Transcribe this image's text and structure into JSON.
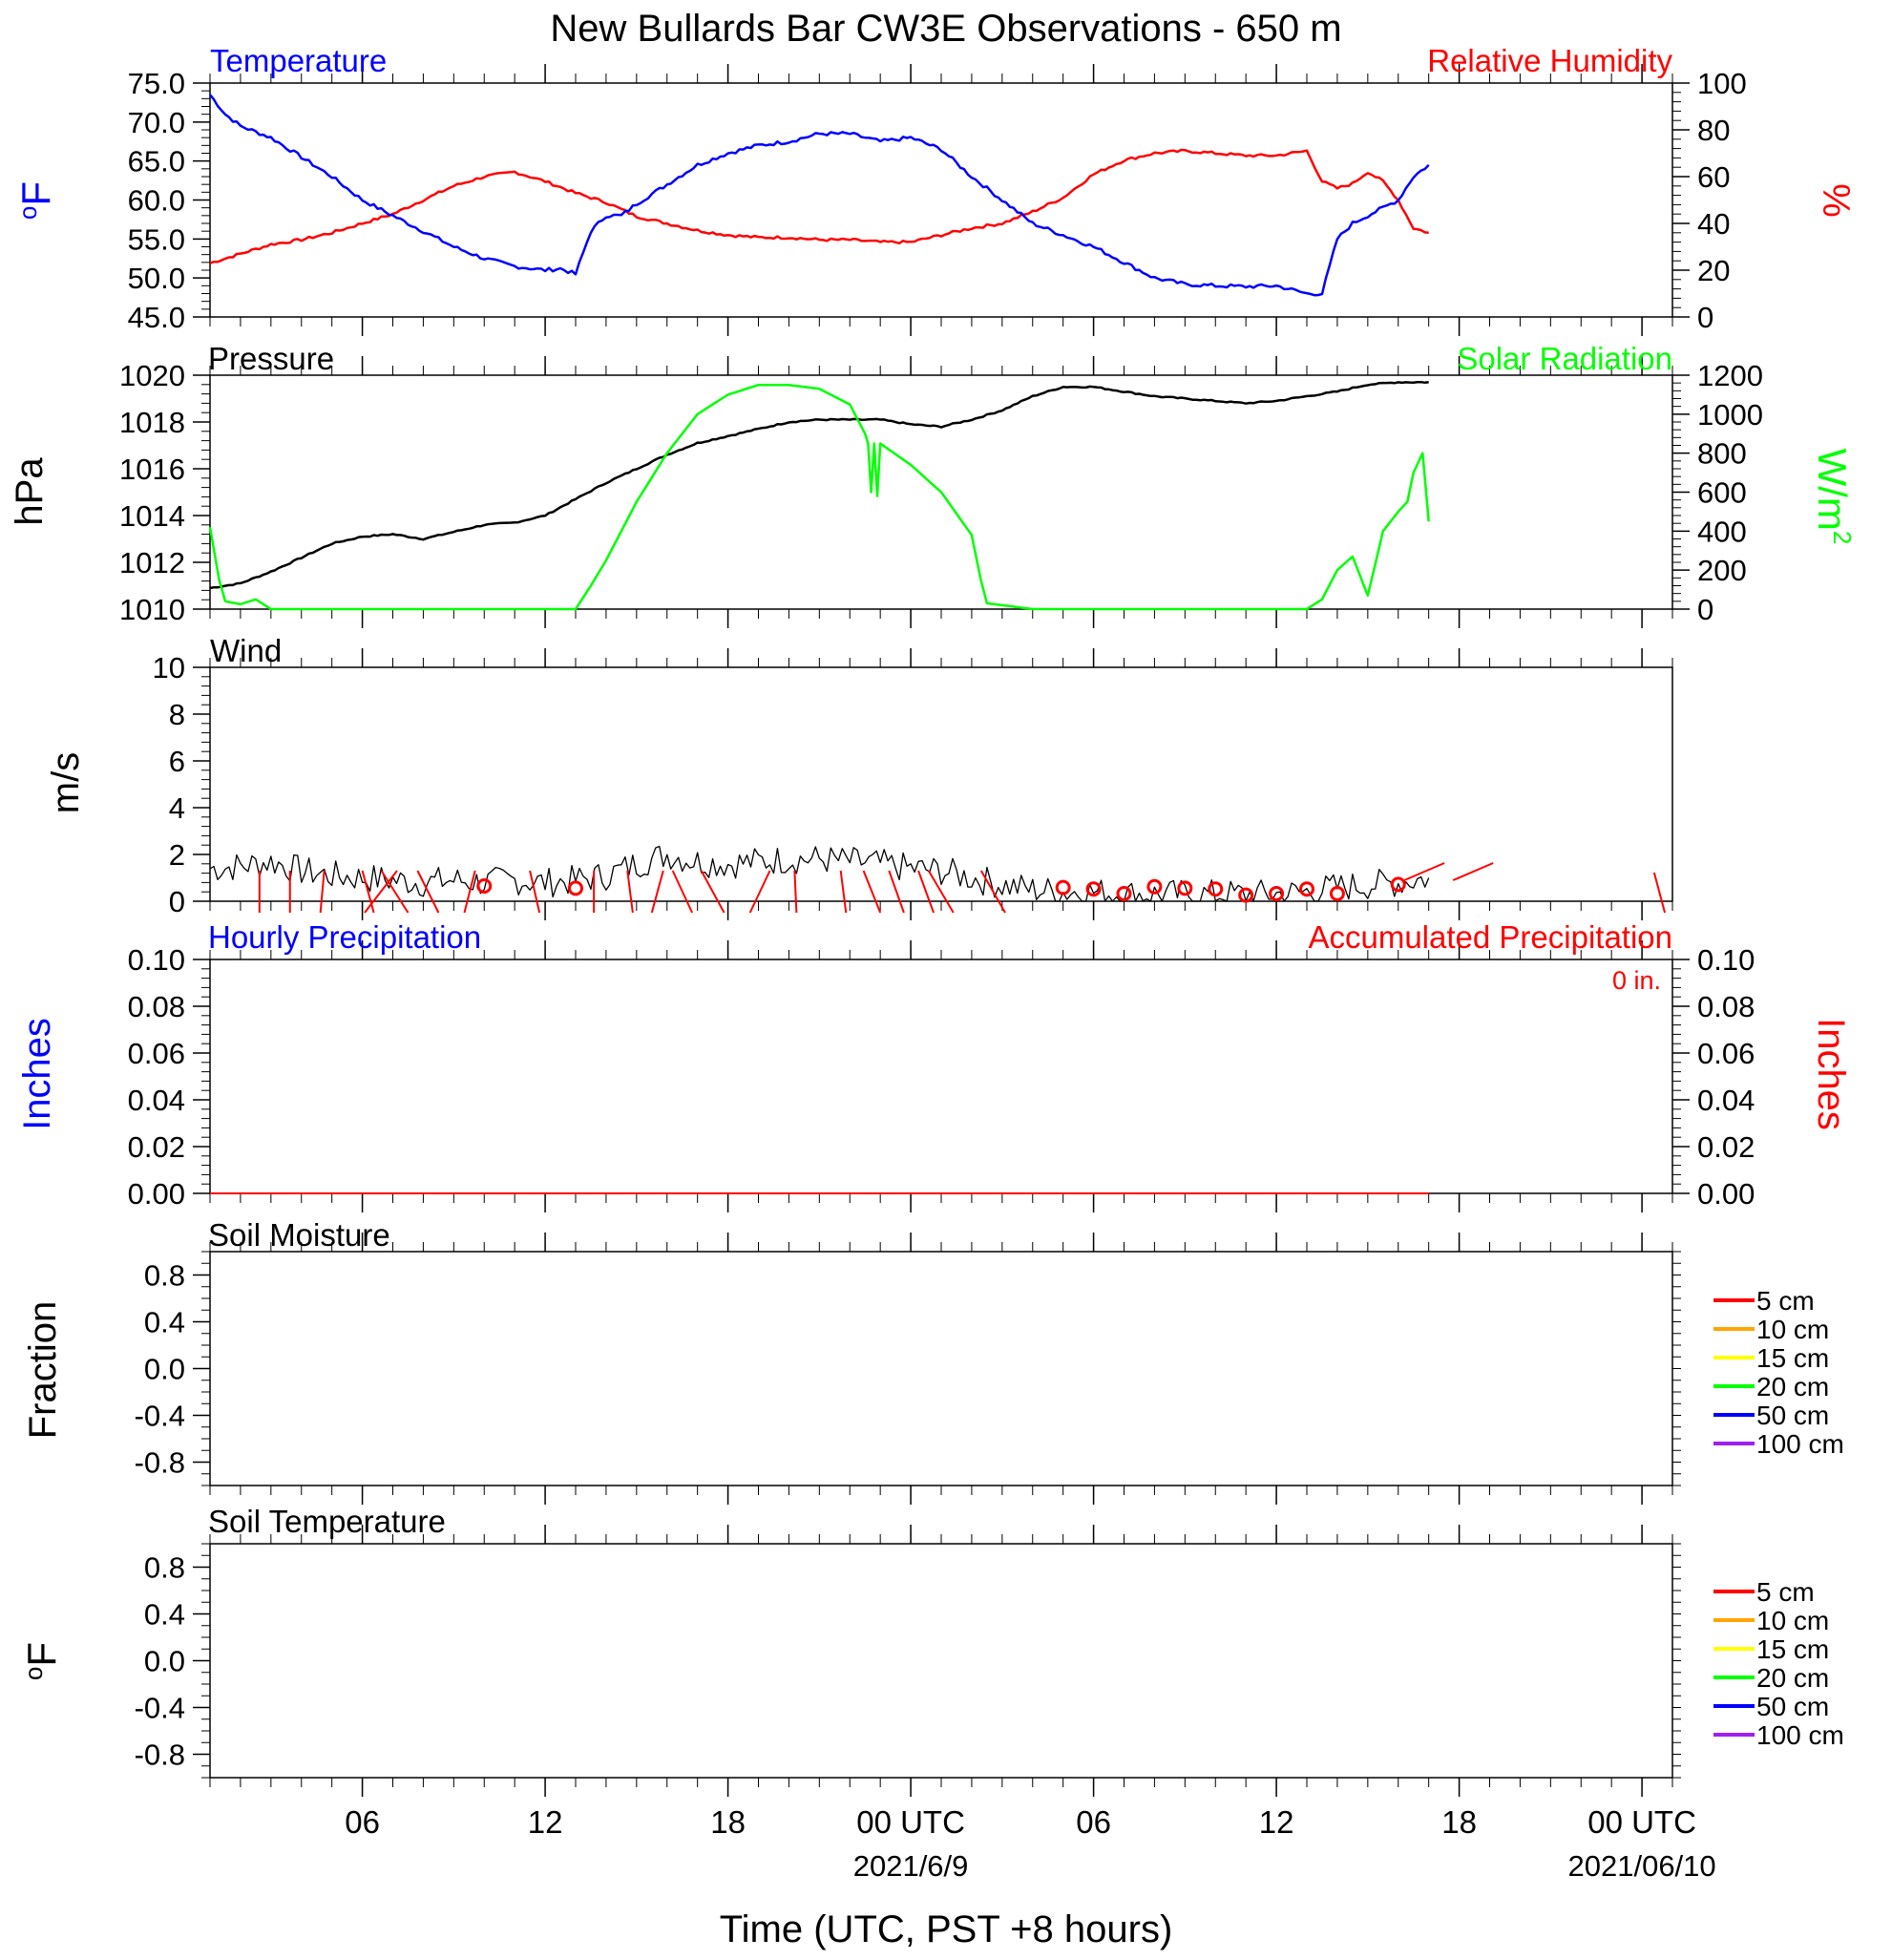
{
  "title": "New Bullards Bar CW3E Observations - 650 m",
  "xlabel": "Time (UTC, PST +8 hours)",
  "x_ticks": [
    {
      "h": 6,
      "label": "06"
    },
    {
      "h": 12,
      "label": "12"
    },
    {
      "h": 18,
      "label": "18"
    },
    {
      "h": 24,
      "label": "00 UTC",
      "date": "2021/6/9"
    },
    {
      "h": 30,
      "label": "06"
    },
    {
      "h": 36,
      "label": "12"
    },
    {
      "h": 42,
      "label": "18"
    },
    {
      "h": 48,
      "label": "00 UTC",
      "date": "2021/06/10"
    }
  ],
  "colors": {
    "temperature": "#0000ff",
    "humidity": "#ff0000",
    "pressure": "#000000",
    "solar": "#00ff00",
    "wind": "#000000",
    "wind_marks": "#ff0000",
    "precip_hourly": "#0000ff",
    "precip_accum": "#ff0000"
  },
  "panels": {
    "temp_rh": {
      "left_title": "Temperature",
      "right_title": "Relative Humidity",
      "left_unit": "oF",
      "right_unit": "%",
      "left_ticks": [
        "75.0",
        "70.0",
        "65.0",
        "60.0",
        "55.0",
        "50.0",
        "45.0"
      ],
      "right_ticks": [
        "100",
        "80",
        "60",
        "40",
        "20",
        "0"
      ]
    },
    "pressure_solar": {
      "left_title": "Pressure",
      "right_title": "Solar Radiation",
      "left_unit": "hPa",
      "right_unit": "W/m2",
      "left_ticks": [
        "1020",
        "1018",
        "1016",
        "1014",
        "1012",
        "1010"
      ],
      "right_ticks": [
        "1200",
        "1000",
        "800",
        "600",
        "400",
        "200",
        "0"
      ]
    },
    "wind": {
      "left_title": "Wind",
      "left_unit": "m/s",
      "left_ticks": [
        "10",
        "8",
        "6",
        "4",
        "2",
        "0"
      ]
    },
    "precip": {
      "left_title": "Hourly Precipitation",
      "right_title": "Accumulated Precipitation",
      "accum_total": "0 in.",
      "left_unit": "Inches",
      "right_unit": "Inches",
      "left_ticks": [
        "0.10",
        "0.08",
        "0.06",
        "0.04",
        "0.02",
        "0.00"
      ],
      "right_ticks": [
        "0.10",
        "0.08",
        "0.06",
        "0.04",
        "0.02",
        "0.00"
      ]
    },
    "soil_moisture": {
      "left_title": "Soil Moisture",
      "left_unit": "Fraction",
      "left_ticks": [
        "0.8",
        "0.4",
        "0.0",
        "-0.4",
        "-0.8"
      ],
      "legend": [
        {
          "label": "5 cm",
          "color": "#ff0000"
        },
        {
          "label": "10 cm",
          "color": "#ffa500"
        },
        {
          "label": "15 cm",
          "color": "#ffff00"
        },
        {
          "label": "20 cm",
          "color": "#00ff00"
        },
        {
          "label": "50 cm",
          "color": "#0000ff"
        },
        {
          "label": "100 cm",
          "color": "#a020f0"
        }
      ]
    },
    "soil_temp": {
      "left_title": "Soil Temperature",
      "left_unit": "oF",
      "left_ticks": [
        "0.8",
        "0.4",
        "0.0",
        "-0.4",
        "-0.8"
      ],
      "legend": [
        {
          "label": "5 cm",
          "color": "#ff0000"
        },
        {
          "label": "10 cm",
          "color": "#ffa500"
        },
        {
          "label": "15 cm",
          "color": "#ffff00"
        },
        {
          "label": "20 cm",
          "color": "#00ff00"
        },
        {
          "label": "50 cm",
          "color": "#0000ff"
        },
        {
          "label": "100 cm",
          "color": "#a020f0"
        }
      ]
    }
  },
  "chart_data": [
    {
      "type": "line",
      "title": "Temperature / Relative Humidity",
      "xlim_hours": [
        1,
        49
      ],
      "ylim": [
        45,
        75
      ],
      "y2lim": [
        0,
        100
      ],
      "series": [
        {
          "name": "Temperature",
          "axis": "left",
          "x": [
            1,
            1.5,
            2,
            3,
            4,
            5,
            6,
            7,
            8,
            9,
            10,
            11,
            12,
            12.5,
            13,
            13.5,
            14,
            14.5,
            15,
            16,
            17,
            18,
            19,
            20,
            21,
            22,
            23,
            24,
            25,
            26,
            27,
            28,
            29,
            30,
            31,
            32,
            33,
            34,
            35,
            36,
            36.5,
            37,
            37.5,
            38,
            38.5,
            39,
            40,
            40.5,
            41
          ],
          "y": [
            73.5,
            71,
            69.5,
            68,
            65.5,
            63,
            60,
            58,
            56,
            54,
            52.5,
            51.5,
            51,
            51.2,
            50.5,
            56,
            58,
            58,
            59.5,
            62,
            64.5,
            66,
            67,
            67.5,
            68.5,
            68.5,
            67.5,
            68,
            66.5,
            63,
            60,
            57,
            55.5,
            54,
            52,
            50,
            49.2,
            49,
            48.9,
            49,
            48.5,
            48,
            48,
            55,
            57,
            58,
            60,
            63,
            64.5
          ]
        },
        {
          "name": "Relative Humidity",
          "axis": "right",
          "x": [
            1,
            2,
            3,
            4,
            5,
            6,
            7,
            8,
            9,
            10,
            11,
            12,
            13,
            14,
            15,
            16,
            17,
            18,
            19,
            20,
            21,
            22,
            23,
            24,
            25,
            26,
            27,
            28,
            29,
            30,
            31,
            32,
            33,
            34,
            35,
            36,
            36.5,
            37,
            37.5,
            38,
            38.5,
            39,
            39.5,
            40,
            40.5,
            41
          ],
          "y": [
            23,
            27,
            31,
            33,
            36,
            40,
            44,
            50,
            56,
            60,
            62,
            58,
            53,
            49,
            43,
            40,
            37,
            35,
            34,
            34,
            33,
            33,
            32,
            32,
            35,
            38,
            40,
            45,
            51,
            61,
            67,
            70,
            71,
            70,
            69,
            69,
            70,
            71,
            58,
            55,
            57,
            62,
            58,
            50,
            38,
            36
          ]
        }
      ]
    },
    {
      "type": "line",
      "title": "Pressure / Solar Radiation",
      "xlim_hours": [
        1,
        49
      ],
      "ylim": [
        1010,
        1020
      ],
      "y2lim": [
        0,
        1200
      ],
      "series": [
        {
          "name": "Pressure",
          "axis": "left",
          "x": [
            1,
            2,
            3,
            4,
            5,
            6,
            7,
            8,
            9,
            10,
            11,
            12,
            13,
            14,
            15,
            16,
            17,
            18,
            19,
            20,
            21,
            22,
            23,
            24,
            25,
            26,
            27,
            28,
            29,
            30,
            31,
            32,
            33,
            34,
            35,
            36,
            37,
            38,
            39,
            40,
            41
          ],
          "y": [
            1010.9,
            1011.1,
            1011.6,
            1012.2,
            1012.8,
            1013.1,
            1013.2,
            1013.0,
            1013.3,
            1013.6,
            1013.7,
            1014.0,
            1014.7,
            1015.4,
            1016.0,
            1016.6,
            1017.1,
            1017.4,
            1017.7,
            1018.0,
            1018.1,
            1018.1,
            1018.1,
            1017.9,
            1017.8,
            1018.1,
            1018.5,
            1019.1,
            1019.5,
            1019.5,
            1019.3,
            1019.1,
            1019.0,
            1018.9,
            1018.8,
            1018.9,
            1019.1,
            1019.3,
            1019.6,
            1019.7,
            1019.7
          ]
        },
        {
          "name": "Solar Radiation",
          "axis": "right",
          "x": [
            1,
            1.3,
            1.5,
            2,
            2.5,
            3,
            3.5,
            12,
            13,
            13.5,
            14,
            15,
            16,
            17,
            18,
            19,
            20,
            21,
            22,
            22.5,
            22.6,
            22.7,
            22.8,
            22.9,
            23,
            24,
            25,
            26,
            26.3,
            26.5,
            27,
            28,
            30,
            35,
            37,
            37.5,
            38,
            38.5,
            39,
            39.2,
            39.5,
            40,
            40.3,
            40.5,
            40.8,
            41
          ],
          "y": [
            420,
            150,
            40,
            25,
            50,
            0,
            0,
            0,
            0,
            120,
            250,
            550,
            800,
            1000,
            1100,
            1150,
            1150,
            1130,
            1050,
            900,
            850,
            600,
            850,
            580,
            850,
            740,
            600,
            380,
            150,
            30,
            20,
            0,
            0,
            0,
            0,
            50,
            200,
            270,
            70,
            200,
            400,
            500,
            550,
            700,
            800,
            450
          ]
        }
      ]
    },
    {
      "type": "line",
      "title": "Wind",
      "xlim_hours": [
        1,
        49
      ],
      "ylim": [
        0,
        10
      ],
      "series": [
        {
          "name": "Wind",
          "x": [
            1,
            2,
            3,
            4,
            5,
            6,
            7,
            8,
            9,
            10,
            11,
            12,
            13,
            14,
            15,
            16,
            17,
            18,
            19,
            20,
            21,
            22,
            23,
            24,
            25,
            26,
            27,
            28,
            29,
            30,
            31,
            32,
            33,
            34,
            35,
            36,
            37,
            38,
            39,
            40,
            41
          ],
          "y": [
            1.4,
            1.5,
            1.7,
            1.3,
            1.1,
            1.0,
            0.9,
            0.8,
            0.9,
            0.8,
            0.9,
            0.8,
            0.9,
            1.1,
            1.6,
            2.0,
            1.7,
            1.6,
            1.7,
            1.8,
            1.8,
            1.7,
            1.6,
            1.4,
            1.3,
            1.0,
            0.7,
            0.5,
            0.4,
            0.4,
            0.3,
            0.3,
            0.3,
            0.3,
            0.3,
            0.3,
            0.4,
            0.6,
            0.7,
            0.8,
            1.0
          ]
        }
      ]
    },
    {
      "type": "line",
      "title": "Hourly Precipitation / Accumulated Precipitation",
      "xlim_hours": [
        1,
        49
      ],
      "ylim": [
        0,
        0.1
      ],
      "y2lim": [
        0,
        0.1
      ],
      "series": [
        {
          "name": "Hourly Precipitation",
          "x": [
            1,
            41
          ],
          "y": [
            0,
            0
          ]
        },
        {
          "name": "Accumulated Precipitation",
          "x": [
            1,
            41
          ],
          "y": [
            0,
            0
          ]
        }
      ]
    }
  ]
}
